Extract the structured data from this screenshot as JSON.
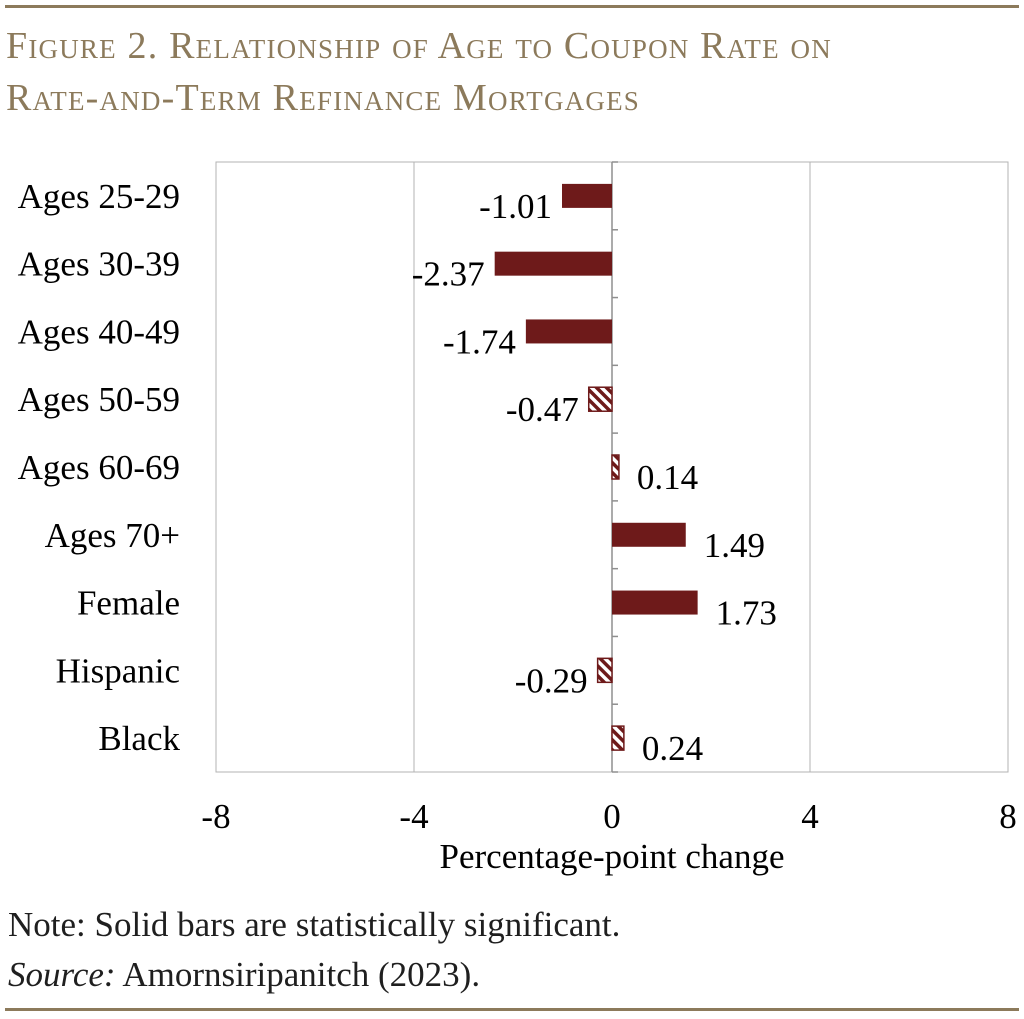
{
  "title": {
    "line1": "Figure 2. Relationship of Age to Coupon Rate on",
    "line2": "Rate-and-Term Refinance Mortgages"
  },
  "chart_data": {
    "type": "bar",
    "orientation": "horizontal",
    "categories": [
      "Ages 25-29",
      "Ages 30-39",
      "Ages 40-49",
      "Ages 50-59",
      "Ages 60-69",
      "Ages 70+",
      "Female",
      "Hispanic",
      "Black"
    ],
    "values": [
      -1.01,
      -2.37,
      -1.74,
      -0.47,
      0.14,
      1.49,
      1.73,
      -0.29,
      0.24
    ],
    "value_labels": [
      "-1.01",
      "-2.37",
      "-1.74",
      "-0.47",
      "0.14",
      "1.49",
      "1.73",
      "-0.29",
      "0.24"
    ],
    "significant": [
      true,
      true,
      true,
      false,
      false,
      true,
      true,
      false,
      false
    ],
    "xlabel": "Percentage-point change",
    "xlim": [
      -8,
      8
    ],
    "xticks": [
      "-8",
      "-4",
      "0",
      "4",
      "8"
    ],
    "grid": true,
    "colors": {
      "bar": "#6e1a1a",
      "grid": "#b3b3b3",
      "axis": "#8f8f8f"
    }
  },
  "note": {
    "text": "Note: Solid bars are statistically significant.",
    "source_label": "Source:",
    "source_text": " Amornsiripanitch (2023)."
  }
}
